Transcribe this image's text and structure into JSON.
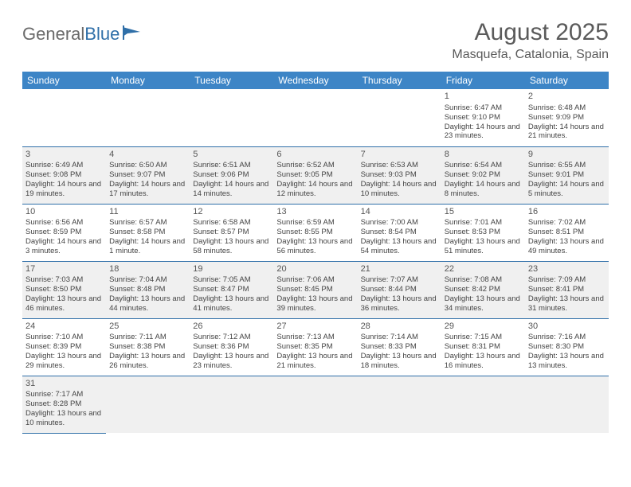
{
  "logo": {
    "text_a": "General",
    "text_b": "Blue"
  },
  "title": "August 2025",
  "location": "Masquefa, Catalonia, Spain",
  "colors": {
    "header_bg": "#3d85c6",
    "header_text": "#ffffff",
    "row_alt_bg": "#f0f0f0",
    "row_bg": "#ffffff",
    "border": "#2f6fa8",
    "title_color": "#5a5a5a",
    "logo_gray": "#6a6a6a",
    "logo_blue": "#2f6fa8"
  },
  "fonts": {
    "title_pt": 30,
    "location_pt": 16,
    "header_pt": 12,
    "cell_pt": 9.5,
    "daynum_pt": 11
  },
  "days_of_week": [
    "Sunday",
    "Monday",
    "Tuesday",
    "Wednesday",
    "Thursday",
    "Friday",
    "Saturday"
  ],
  "weeks": [
    [
      null,
      null,
      null,
      null,
      null,
      {
        "n": "1",
        "sr": "Sunrise: 6:47 AM",
        "ss": "Sunset: 9:10 PM",
        "dl": "Daylight: 14 hours and 23 minutes."
      },
      {
        "n": "2",
        "sr": "Sunrise: 6:48 AM",
        "ss": "Sunset: 9:09 PM",
        "dl": "Daylight: 14 hours and 21 minutes."
      }
    ],
    [
      {
        "n": "3",
        "sr": "Sunrise: 6:49 AM",
        "ss": "Sunset: 9:08 PM",
        "dl": "Daylight: 14 hours and 19 minutes."
      },
      {
        "n": "4",
        "sr": "Sunrise: 6:50 AM",
        "ss": "Sunset: 9:07 PM",
        "dl": "Daylight: 14 hours and 17 minutes."
      },
      {
        "n": "5",
        "sr": "Sunrise: 6:51 AM",
        "ss": "Sunset: 9:06 PM",
        "dl": "Daylight: 14 hours and 14 minutes."
      },
      {
        "n": "6",
        "sr": "Sunrise: 6:52 AM",
        "ss": "Sunset: 9:05 PM",
        "dl": "Daylight: 14 hours and 12 minutes."
      },
      {
        "n": "7",
        "sr": "Sunrise: 6:53 AM",
        "ss": "Sunset: 9:03 PM",
        "dl": "Daylight: 14 hours and 10 minutes."
      },
      {
        "n": "8",
        "sr": "Sunrise: 6:54 AM",
        "ss": "Sunset: 9:02 PM",
        "dl": "Daylight: 14 hours and 8 minutes."
      },
      {
        "n": "9",
        "sr": "Sunrise: 6:55 AM",
        "ss": "Sunset: 9:01 PM",
        "dl": "Daylight: 14 hours and 5 minutes."
      }
    ],
    [
      {
        "n": "10",
        "sr": "Sunrise: 6:56 AM",
        "ss": "Sunset: 8:59 PM",
        "dl": "Daylight: 14 hours and 3 minutes."
      },
      {
        "n": "11",
        "sr": "Sunrise: 6:57 AM",
        "ss": "Sunset: 8:58 PM",
        "dl": "Daylight: 14 hours and 1 minute."
      },
      {
        "n": "12",
        "sr": "Sunrise: 6:58 AM",
        "ss": "Sunset: 8:57 PM",
        "dl": "Daylight: 13 hours and 58 minutes."
      },
      {
        "n": "13",
        "sr": "Sunrise: 6:59 AM",
        "ss": "Sunset: 8:55 PM",
        "dl": "Daylight: 13 hours and 56 minutes."
      },
      {
        "n": "14",
        "sr": "Sunrise: 7:00 AM",
        "ss": "Sunset: 8:54 PM",
        "dl": "Daylight: 13 hours and 54 minutes."
      },
      {
        "n": "15",
        "sr": "Sunrise: 7:01 AM",
        "ss": "Sunset: 8:53 PM",
        "dl": "Daylight: 13 hours and 51 minutes."
      },
      {
        "n": "16",
        "sr": "Sunrise: 7:02 AM",
        "ss": "Sunset: 8:51 PM",
        "dl": "Daylight: 13 hours and 49 minutes."
      }
    ],
    [
      {
        "n": "17",
        "sr": "Sunrise: 7:03 AM",
        "ss": "Sunset: 8:50 PM",
        "dl": "Daylight: 13 hours and 46 minutes."
      },
      {
        "n": "18",
        "sr": "Sunrise: 7:04 AM",
        "ss": "Sunset: 8:48 PM",
        "dl": "Daylight: 13 hours and 44 minutes."
      },
      {
        "n": "19",
        "sr": "Sunrise: 7:05 AM",
        "ss": "Sunset: 8:47 PM",
        "dl": "Daylight: 13 hours and 41 minutes."
      },
      {
        "n": "20",
        "sr": "Sunrise: 7:06 AM",
        "ss": "Sunset: 8:45 PM",
        "dl": "Daylight: 13 hours and 39 minutes."
      },
      {
        "n": "21",
        "sr": "Sunrise: 7:07 AM",
        "ss": "Sunset: 8:44 PM",
        "dl": "Daylight: 13 hours and 36 minutes."
      },
      {
        "n": "22",
        "sr": "Sunrise: 7:08 AM",
        "ss": "Sunset: 8:42 PM",
        "dl": "Daylight: 13 hours and 34 minutes."
      },
      {
        "n": "23",
        "sr": "Sunrise: 7:09 AM",
        "ss": "Sunset: 8:41 PM",
        "dl": "Daylight: 13 hours and 31 minutes."
      }
    ],
    [
      {
        "n": "24",
        "sr": "Sunrise: 7:10 AM",
        "ss": "Sunset: 8:39 PM",
        "dl": "Daylight: 13 hours and 29 minutes."
      },
      {
        "n": "25",
        "sr": "Sunrise: 7:11 AM",
        "ss": "Sunset: 8:38 PM",
        "dl": "Daylight: 13 hours and 26 minutes."
      },
      {
        "n": "26",
        "sr": "Sunrise: 7:12 AM",
        "ss": "Sunset: 8:36 PM",
        "dl": "Daylight: 13 hours and 23 minutes."
      },
      {
        "n": "27",
        "sr": "Sunrise: 7:13 AM",
        "ss": "Sunset: 8:35 PM",
        "dl": "Daylight: 13 hours and 21 minutes."
      },
      {
        "n": "28",
        "sr": "Sunrise: 7:14 AM",
        "ss": "Sunset: 8:33 PM",
        "dl": "Daylight: 13 hours and 18 minutes."
      },
      {
        "n": "29",
        "sr": "Sunrise: 7:15 AM",
        "ss": "Sunset: 8:31 PM",
        "dl": "Daylight: 13 hours and 16 minutes."
      },
      {
        "n": "30",
        "sr": "Sunrise: 7:16 AM",
        "ss": "Sunset: 8:30 PM",
        "dl": "Daylight: 13 hours and 13 minutes."
      }
    ],
    [
      {
        "n": "31",
        "sr": "Sunrise: 7:17 AM",
        "ss": "Sunset: 8:28 PM",
        "dl": "Daylight: 13 hours and 10 minutes."
      },
      null,
      null,
      null,
      null,
      null,
      null
    ]
  ]
}
